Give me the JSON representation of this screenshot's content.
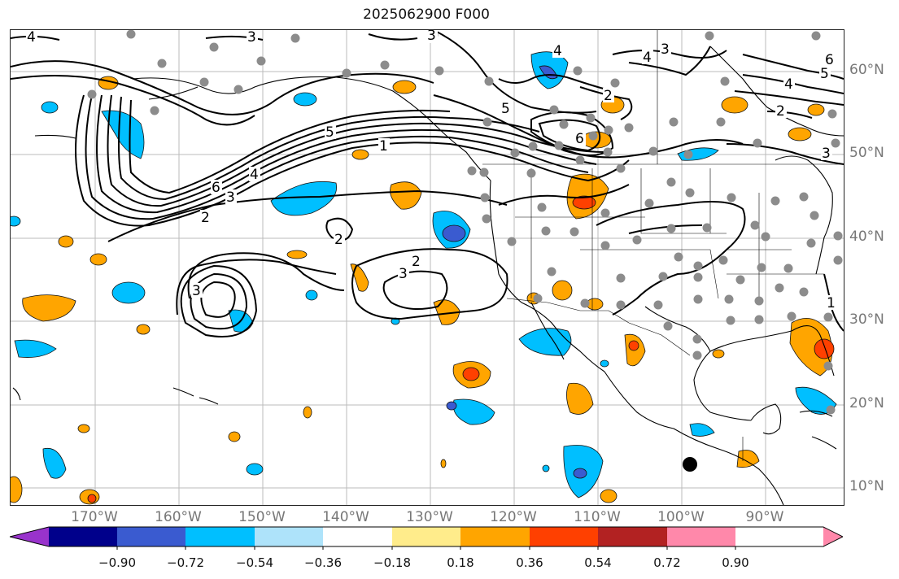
{
  "title": "2025062900 F000",
  "lon_ticks": [
    "170°W",
    "160°W",
    "150°W",
    "140°W",
    "130°W",
    "120°W",
    "110°W",
    "100°W",
    "90°W"
  ],
  "lat_ticks": [
    "60°N",
    "50°N",
    "40°N",
    "30°N",
    "20°N",
    "10°N"
  ],
  "contour_labels": [
    "1",
    "2",
    "3",
    "4",
    "5",
    "6"
  ],
  "colorbar": {
    "tick_labels": [
      "−0.90",
      "−0.72",
      "−0.54",
      "−0.36",
      "−0.18",
      "0.18",
      "0.36",
      "0.54",
      "0.72",
      "0.90"
    ],
    "colors": [
      "#9933cc",
      "#00008b",
      "#3a5bd0",
      "#00bfff",
      "#aee3fa",
      "#ffffff",
      "#ffec8b",
      "#ffa500",
      "#ff4000",
      "#b22222",
      "#ff88aa"
    ]
  }
}
